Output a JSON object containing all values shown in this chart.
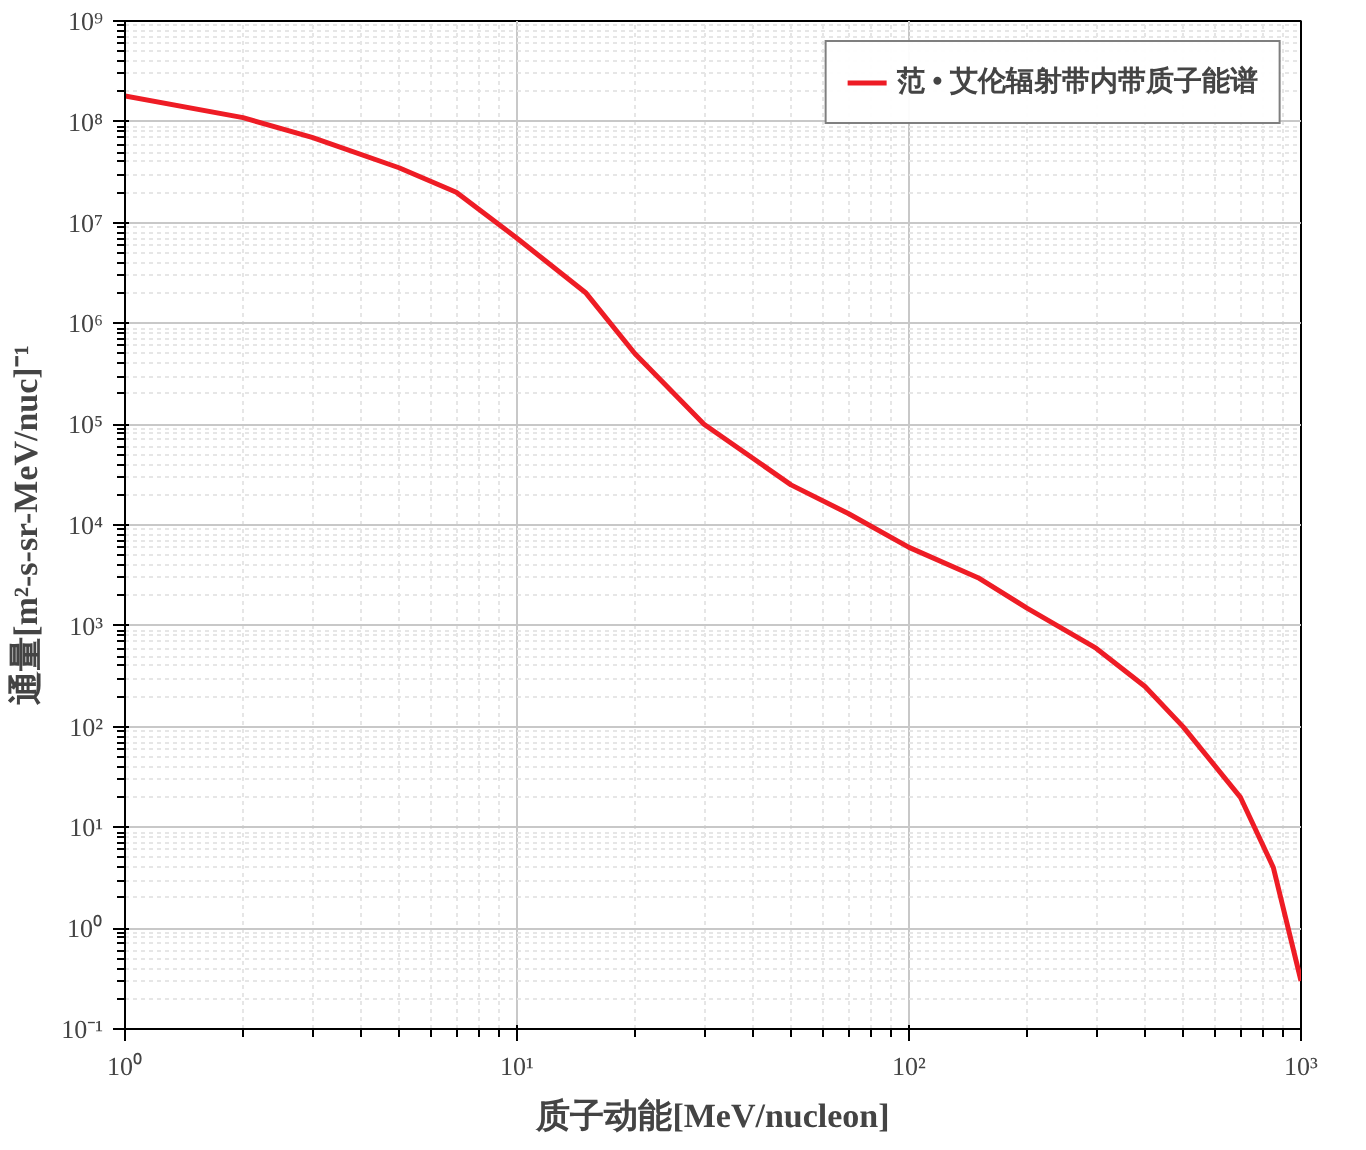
{
  "chart_data": {
    "type": "line",
    "xlabel": "质子动能[MeV/nucleon]",
    "ylabel": "通量[m²-s-sr-MeV/nuc]⁻¹",
    "log": "xy",
    "grid": true,
    "legend": "top right",
    "line_style": "solid",
    "marker": "none",
    "xlim": [
      1,
      1000
    ],
    "ylim": [
      0.1,
      1000000000
    ],
    "xticks": [
      {
        "value": 1,
        "label": "10⁰"
      },
      {
        "value": 10,
        "label": "10¹"
      },
      {
        "value": 100,
        "label": "10²"
      },
      {
        "value": 1000,
        "label": "10³"
      }
    ],
    "yticks": [
      {
        "value": 0.1,
        "label": "10⁻¹"
      },
      {
        "value": 1,
        "label": "10⁰"
      },
      {
        "value": 10,
        "label": "10¹"
      },
      {
        "value": 100,
        "label": "10²"
      },
      {
        "value": 1000,
        "label": "10³"
      },
      {
        "value": 10000,
        "label": "10⁴"
      },
      {
        "value": 100000,
        "label": "10⁵"
      },
      {
        "value": 1000000,
        "label": "10⁶"
      },
      {
        "value": 10000000,
        "label": "10⁷"
      },
      {
        "value": 100000000,
        "label": "10⁸"
      },
      {
        "value": 1000000000,
        "label": "10⁹"
      }
    ],
    "x": [
      1,
      2,
      3,
      5,
      7,
      10,
      15,
      20,
      30,
      50,
      70,
      100,
      150,
      200,
      300,
      400,
      500,
      700,
      850,
      1000
    ],
    "series": [
      {
        "name": "范 • 艾伦辐射带内带质子能谱",
        "color": "#ee1c25",
        "values": [
          180000000,
          110000000,
          70000000,
          35000000,
          20000000,
          7000000,
          2000000,
          500000,
          100000,
          25000,
          13000,
          6000,
          3000,
          1500,
          600,
          250,
          100,
          20,
          4,
          0.3
        ]
      }
    ]
  }
}
